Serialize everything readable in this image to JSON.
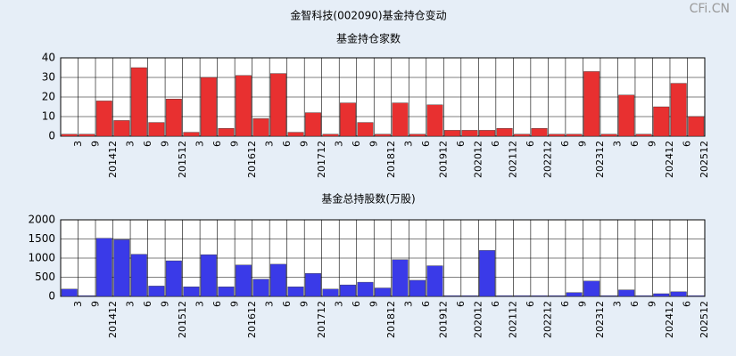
{
  "title": "金智科技(002090)基金持仓变动",
  "watermark": "CFi.CN",
  "chart_data": [
    {
      "type": "bar",
      "title": "基金持仓家数",
      "color": "#e83030",
      "categories": [
        "3",
        "9",
        "201412",
        "3",
        "6",
        "9",
        "201512",
        "3",
        "6",
        "9",
        "201612",
        "3",
        "6",
        "9",
        "201712",
        "3",
        "6",
        "9",
        "201812",
        "3",
        "6",
        "201912",
        "6",
        "202012",
        "6",
        "202112",
        "6",
        "202212",
        "6",
        "9",
        "202312",
        "3",
        "6",
        "9",
        "202412",
        "6",
        "202512"
      ],
      "values": [
        1,
        1,
        18,
        8,
        35,
        7,
        19,
        2,
        30,
        4,
        31,
        9,
        32,
        2,
        12,
        1,
        17,
        7,
        1,
        17,
        1,
        16,
        3,
        3,
        3,
        4,
        1,
        4,
        1,
        1,
        33,
        1,
        21,
        1,
        15,
        27,
        10
      ],
      "ylim": [
        0,
        40
      ],
      "yticks": [
        0,
        10,
        20,
        30,
        40
      ],
      "grid": true
    },
    {
      "type": "bar",
      "title": "基金总持股数(万股)",
      "color": "#3a3ae8",
      "categories": [
        "3",
        "9",
        "201412",
        "3",
        "6",
        "9",
        "201512",
        "3",
        "6",
        "9",
        "201612",
        "3",
        "6",
        "9",
        "201712",
        "3",
        "6",
        "9",
        "201812",
        "3",
        "6",
        "201912",
        "6",
        "202012",
        "6",
        "202112",
        "6",
        "202212",
        "6",
        "9",
        "202312",
        "3",
        "6",
        "9",
        "202412",
        "6",
        "202512"
      ],
      "values": [
        190,
        20,
        1520,
        1480,
        1100,
        270,
        930,
        250,
        1090,
        250,
        820,
        450,
        840,
        250,
        600,
        190,
        300,
        370,
        220,
        960,
        420,
        800,
        20,
        20,
        1200,
        20,
        20,
        20,
        20,
        100,
        400,
        20,
        170,
        20,
        70,
        120,
        20
      ],
      "ylim": [
        0,
        2000
      ],
      "yticks": [
        0,
        500,
        1000,
        1500,
        2000
      ],
      "grid": true
    }
  ]
}
